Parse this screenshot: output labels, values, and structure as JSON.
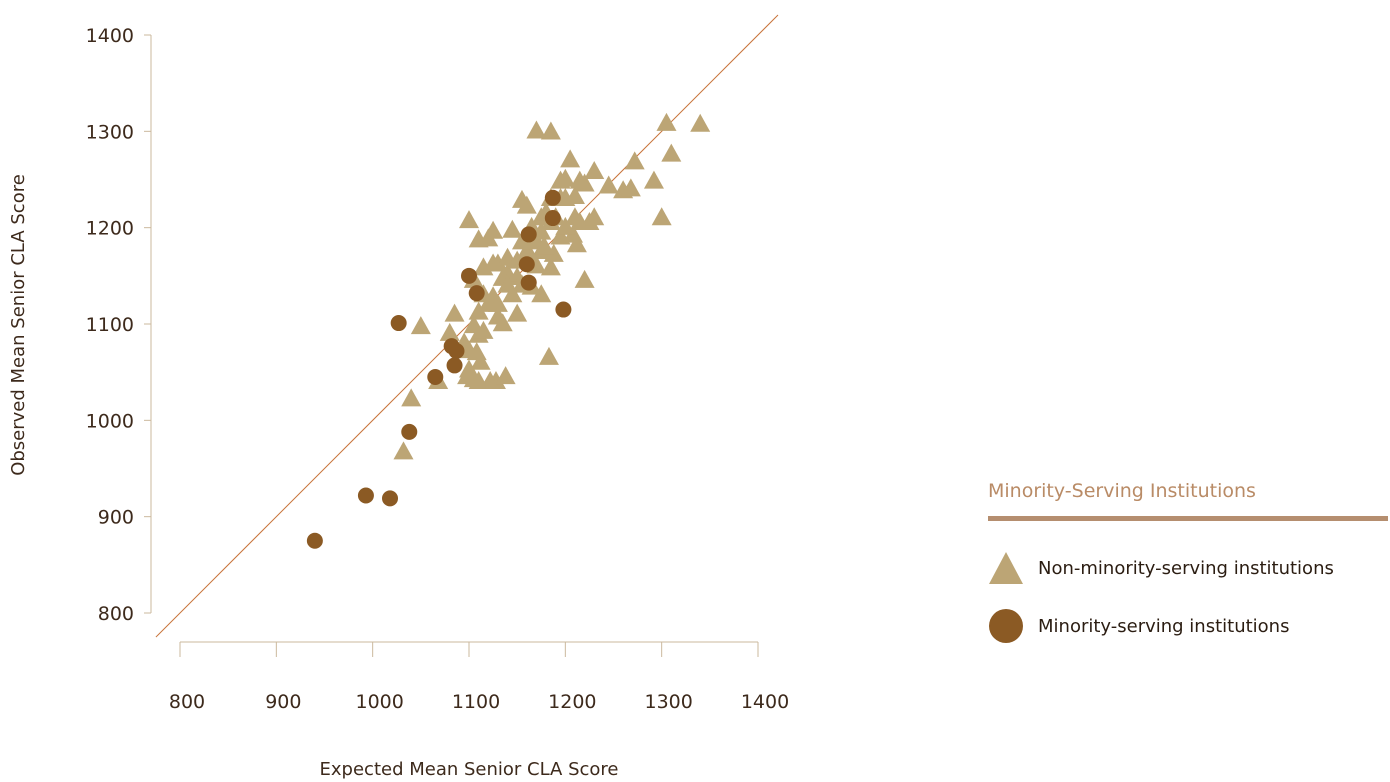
{
  "chart_data": {
    "type": "scatter",
    "xlabel": "Expected Mean Senior CLA Score",
    "ylabel": "Observed Mean Senior CLA Score",
    "xlim": [
      800,
      1400
    ],
    "ylim": [
      800,
      1400
    ],
    "x_ticks": [
      "800",
      "900",
      "1000",
      "1100",
      "1200",
      "1300",
      "1400"
    ],
    "y_ticks": [
      "800",
      "900",
      "1000",
      "1100",
      "1200",
      "1300",
      "1400"
    ],
    "grid": false,
    "reference_line": "y = x",
    "legend": {
      "title": "Minority-Serving Institutions",
      "placement": "right"
    },
    "series": [
      {
        "name": "Non-minority-serving institutions",
        "marker": "triangle",
        "color": "#bca575",
        "points": [
          [
            1050,
            1097
          ],
          [
            1100,
            1207
          ],
          [
            1110,
            1187
          ],
          [
            1120,
            1188
          ],
          [
            1125,
            1196
          ],
          [
            1145,
            1197
          ],
          [
            1155,
            1228
          ],
          [
            1160,
            1222
          ],
          [
            1170,
            1300
          ],
          [
            1185,
            1299
          ],
          [
            1165,
            1200
          ],
          [
            1175,
            1210
          ],
          [
            1180,
            1215
          ],
          [
            1185,
            1205
          ],
          [
            1190,
            1210
          ],
          [
            1195,
            1230
          ],
          [
            1200,
            1250
          ],
          [
            1205,
            1270
          ],
          [
            1210,
            1232
          ],
          [
            1215,
            1248
          ],
          [
            1220,
            1245
          ],
          [
            1230,
            1258
          ],
          [
            1245,
            1243
          ],
          [
            1260,
            1238
          ],
          [
            1268,
            1240
          ],
          [
            1272,
            1268
          ],
          [
            1292,
            1248
          ],
          [
            1300,
            1210
          ],
          [
            1305,
            1308
          ],
          [
            1310,
            1276
          ],
          [
            1340,
            1307
          ],
          [
            1200,
            1230
          ],
          [
            1210,
            1210
          ],
          [
            1215,
            1205
          ],
          [
            1225,
            1205
          ],
          [
            1230,
            1210
          ],
          [
            1208,
            1192
          ],
          [
            1212,
            1182
          ],
          [
            1220,
            1145
          ],
          [
            1185,
            1158
          ],
          [
            1188,
            1172
          ],
          [
            1183,
            1065
          ],
          [
            1175,
            1130
          ],
          [
            1165,
            1138
          ],
          [
            1155,
            1140
          ],
          [
            1150,
            1148
          ],
          [
            1140,
            1152
          ],
          [
            1135,
            1147
          ],
          [
            1130,
            1162
          ],
          [
            1140,
            1168
          ],
          [
            1125,
            1162
          ],
          [
            1115,
            1158
          ],
          [
            1105,
            1145
          ],
          [
            1115,
            1130
          ],
          [
            1125,
            1128
          ],
          [
            1130,
            1120
          ],
          [
            1120,
            1120
          ],
          [
            1110,
            1112
          ],
          [
            1135,
            1100
          ],
          [
            1130,
            1107
          ],
          [
            1150,
            1110
          ],
          [
            1085,
            1110
          ],
          [
            1080,
            1090
          ],
          [
            1105,
            1098
          ],
          [
            1110,
            1088
          ],
          [
            1115,
            1092
          ],
          [
            1095,
            1080
          ],
          [
            1100,
            1072
          ],
          [
            1108,
            1070
          ],
          [
            1112,
            1060
          ],
          [
            1100,
            1052
          ],
          [
            1098,
            1045
          ],
          [
            1105,
            1042
          ],
          [
            1110,
            1040
          ],
          [
            1122,
            1040
          ],
          [
            1128,
            1040
          ],
          [
            1138,
            1045
          ],
          [
            1068,
            1040
          ],
          [
            1040,
            1022
          ],
          [
            1032,
            967
          ],
          [
            1170,
            1185
          ],
          [
            1175,
            1175
          ],
          [
            1160,
            1175
          ],
          [
            1165,
            1190
          ],
          [
            1175,
            1195
          ],
          [
            1165,
            1168
          ],
          [
            1178,
            1180
          ],
          [
            1155,
            1185
          ],
          [
            1150,
            1165
          ],
          [
            1140,
            1140
          ],
          [
            1145,
            1130
          ],
          [
            1170,
            1160
          ],
          [
            1195,
            1190
          ],
          [
            1200,
            1200
          ],
          [
            1185,
            1230
          ],
          [
            1195,
            1248
          ]
        ]
      },
      {
        "name": "Minority-serving institutions",
        "marker": "circle",
        "color": "#8b5a24",
        "points": [
          [
            1027,
            1101
          ],
          [
            1100,
            1150
          ],
          [
            1108,
            1132
          ],
          [
            1082,
            1077
          ],
          [
            1087,
            1072
          ],
          [
            1085,
            1057
          ],
          [
            1065,
            1045
          ],
          [
            1038,
            988
          ],
          [
            993,
            922
          ],
          [
            1018,
            919
          ],
          [
            940,
            875
          ],
          [
            1187,
            1231
          ],
          [
            1187,
            1210
          ],
          [
            1162,
            1193
          ],
          [
            1160,
            1162
          ],
          [
            1162,
            1143
          ],
          [
            1198,
            1115
          ]
        ]
      }
    ]
  }
}
